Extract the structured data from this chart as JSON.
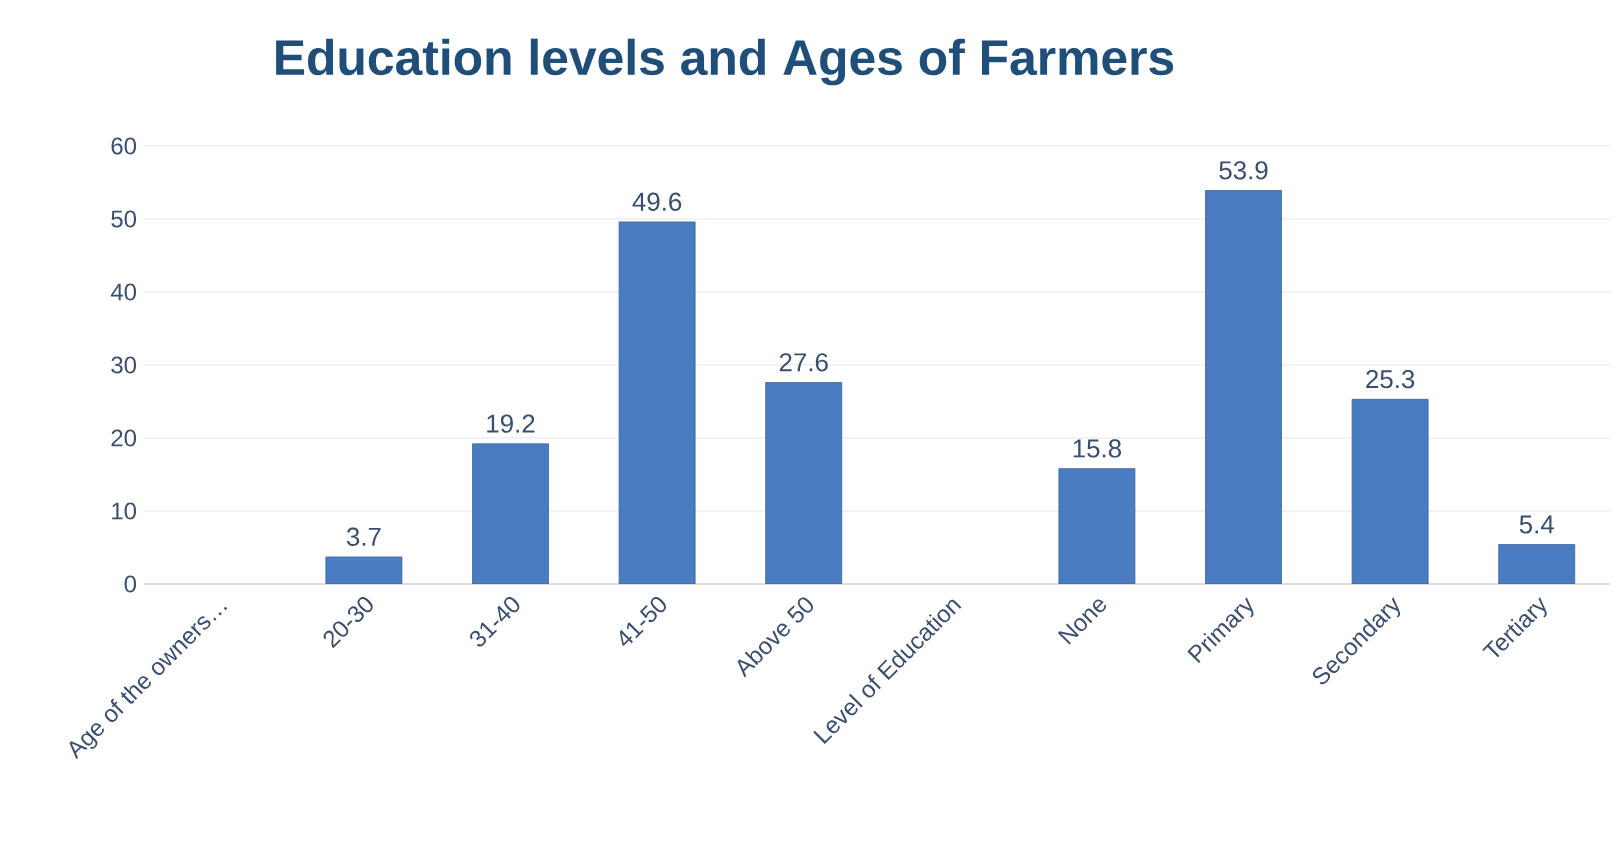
{
  "chart_data": {
    "type": "bar",
    "title": "Education levels and Ages of Farmers",
    "categories": [
      "Age of the owners…",
      "20-30",
      "31-40",
      "41-50",
      "Above 50",
      "Level of Education",
      "None",
      "Primary",
      "Secondary",
      "Tertiary"
    ],
    "values": [
      null,
      3.7,
      19.2,
      49.6,
      27.6,
      null,
      15.8,
      53.9,
      25.3,
      5.4
    ],
    "color": "#4a7cc2",
    "ylim": [
      0,
      60
    ],
    "yticks": [
      0,
      10,
      20,
      30,
      40,
      50,
      60
    ],
    "grid": "y",
    "data_labels": true
  }
}
